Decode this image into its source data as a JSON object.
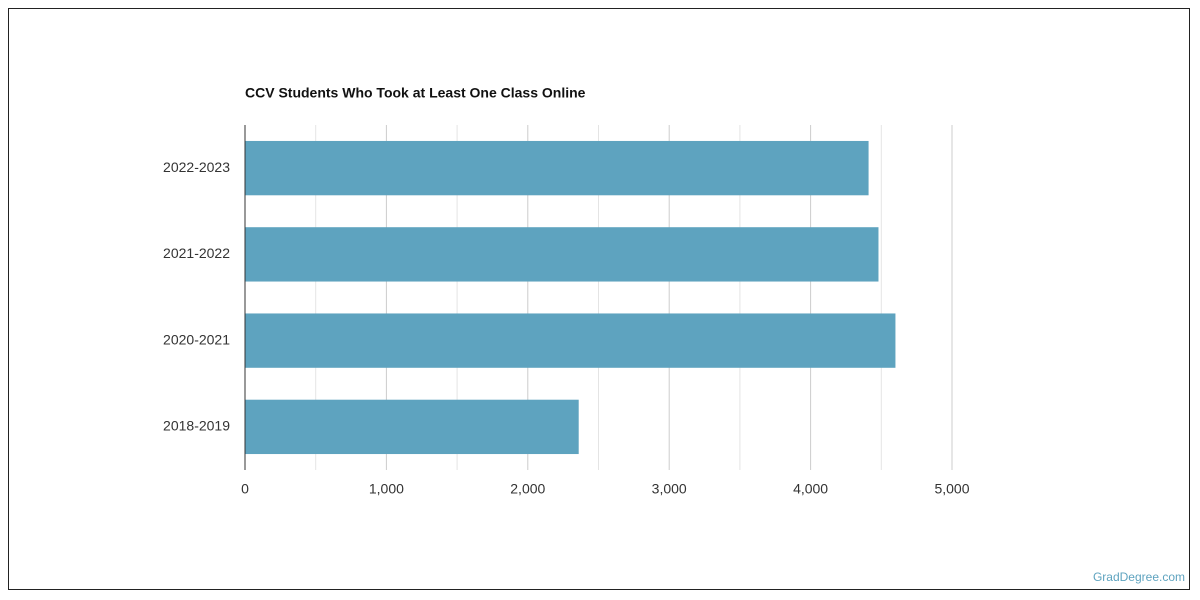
{
  "chart_data": {
    "type": "bar",
    "orientation": "horizontal",
    "title": "CCV Students Who Took at Least One Class Online",
    "categories": [
      "2022-2023",
      "2021-2022",
      "2020-2021",
      "2018-2019"
    ],
    "values": [
      4410,
      4480,
      4600,
      2360
    ],
    "color": "#5ea3bf",
    "xlim": [
      0,
      5000
    ],
    "xticks": [
      0,
      {
        "value": 1000,
        "label": "1,000"
      },
      {
        "value": 2000,
        "label": "2,000"
      },
      {
        "value": 3000,
        "label": "3,000"
      },
      {
        "value": 4000,
        "label": "4,000"
      },
      {
        "value": 5000,
        "label": "5,000"
      }
    ],
    "minor_xticks": [
      500,
      1500,
      2500,
      3500,
      4500
    ],
    "grid": true
  },
  "watermark": "GradDegree.com"
}
